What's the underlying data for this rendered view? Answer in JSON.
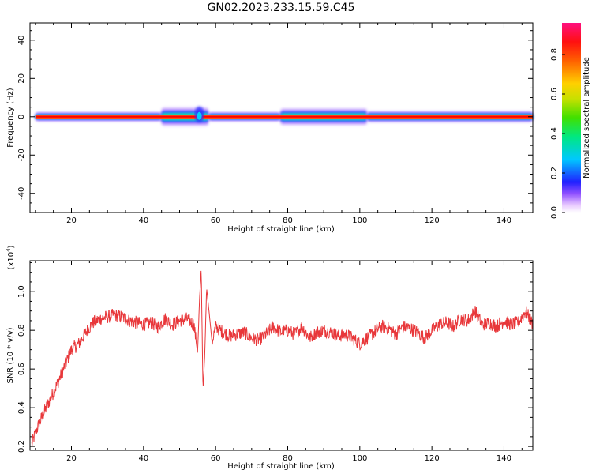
{
  "title": "GN02.2023.233.15.59.C45",
  "chart_data": [
    {
      "type": "heatmap",
      "xlabel": "Height of straight line (km)",
      "ylabel": "Frequency (Hz)",
      "xlim": [
        8.5,
        148
      ],
      "ylim": [
        -50,
        49
      ],
      "xticks": [
        20,
        40,
        60,
        80,
        100,
        120,
        140
      ],
      "yticks": [
        -40,
        -20,
        0,
        20,
        40
      ],
      "colorbar": {
        "label": "Normalized spectral amplitude",
        "range": [
          0,
          0.96
        ],
        "ticks": [
          0.0,
          0.2,
          0.4,
          0.6,
          0.8
        ]
      },
      "band": {
        "center_frequency_hz": 0,
        "core_amplitude": 0.9,
        "segments": [
          {
            "x": [
              10,
              45
            ],
            "halo_hz": 2.5,
            "note": "narrow red core"
          },
          {
            "x": [
              45,
              58
            ],
            "halo_hz": 5,
            "note": "broadened, distorted band near 55 km"
          },
          {
            "x": [
              58,
              78
            ],
            "halo_hz": 2.5
          },
          {
            "x": [
              78,
              102
            ],
            "halo_hz": 4.5,
            "note": "broadened green/cyan band"
          },
          {
            "x": [
              102,
              148
            ],
            "halo_hz": 3
          }
        ]
      }
    },
    {
      "type": "line",
      "xlabel": "Height of straight line (km)",
      "ylabel": "SNR (10 * v/v)",
      "y_multiplier": "(x10^4)",
      "y_multiplier_base": "(x10",
      "y_multiplier_exp": "4",
      "y_multiplier_close": ")",
      "xlim": [
        8.5,
        148
      ],
      "ylim": [
        0.18,
        1.16
      ],
      "xticks": [
        20,
        40,
        60,
        80,
        100,
        120,
        140
      ],
      "yticks": [
        0.2,
        0.4,
        0.6,
        0.8,
        1.0
      ],
      "color": "#e8373a",
      "x": [
        9,
        10,
        12,
        14,
        16,
        18,
        20,
        22,
        24,
        26,
        28,
        30,
        32,
        34,
        36,
        38,
        40,
        42,
        44,
        46,
        48,
        50,
        52,
        54,
        55,
        55.5,
        56,
        56.5,
        57,
        57.5,
        58,
        59,
        60,
        62,
        64,
        66,
        68,
        70,
        72,
        74,
        76,
        78,
        80,
        82,
        84,
        86,
        88,
        90,
        92,
        94,
        96,
        98,
        100,
        102,
        104,
        106,
        108,
        110,
        112,
        114,
        116,
        118,
        120,
        122,
        124,
        126,
        128,
        130,
        132,
        134,
        136,
        138,
        140,
        142,
        144,
        146,
        148
      ],
      "y": [
        0.21,
        0.27,
        0.36,
        0.44,
        0.52,
        0.61,
        0.7,
        0.73,
        0.79,
        0.84,
        0.86,
        0.87,
        0.88,
        0.87,
        0.85,
        0.84,
        0.83,
        0.84,
        0.82,
        0.86,
        0.83,
        0.85,
        0.86,
        0.83,
        0.68,
        0.95,
        1.12,
        0.49,
        0.68,
        1.02,
        0.93,
        0.74,
        0.82,
        0.79,
        0.77,
        0.78,
        0.79,
        0.76,
        0.75,
        0.78,
        0.82,
        0.79,
        0.8,
        0.78,
        0.82,
        0.76,
        0.79,
        0.8,
        0.79,
        0.77,
        0.78,
        0.76,
        0.73,
        0.76,
        0.79,
        0.82,
        0.81,
        0.78,
        0.82,
        0.81,
        0.79,
        0.76,
        0.8,
        0.83,
        0.84,
        0.82,
        0.86,
        0.85,
        0.9,
        0.83,
        0.84,
        0.82,
        0.85,
        0.83,
        0.84,
        0.9,
        0.83
      ]
    }
  ]
}
